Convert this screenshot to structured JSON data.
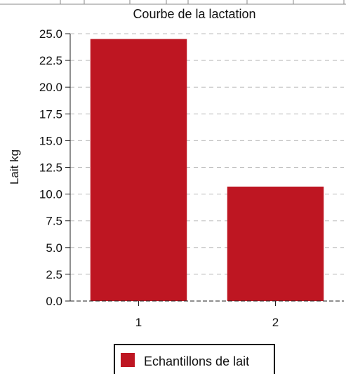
{
  "chart_data": {
    "type": "bar",
    "title": "Courbe de la lactation",
    "xlabel": "",
    "ylabel": "Lait kg",
    "categories": [
      "1",
      "2"
    ],
    "series": [
      {
        "name": "Echantillons de lait",
        "values": [
          24.5,
          10.7
        ]
      }
    ],
    "ylim": [
      0,
      25
    ],
    "y_ticks": [
      "0.0",
      "2.5",
      "5.0",
      "7.5",
      "10.0",
      "12.5",
      "15.0",
      "17.5",
      "20.0",
      "22.5",
      "25.0"
    ],
    "grid": true,
    "legend_position": "bottom",
    "colors": {
      "bar": "#be1622",
      "grid": "#bbbbbb",
      "axis": "#222222"
    }
  }
}
